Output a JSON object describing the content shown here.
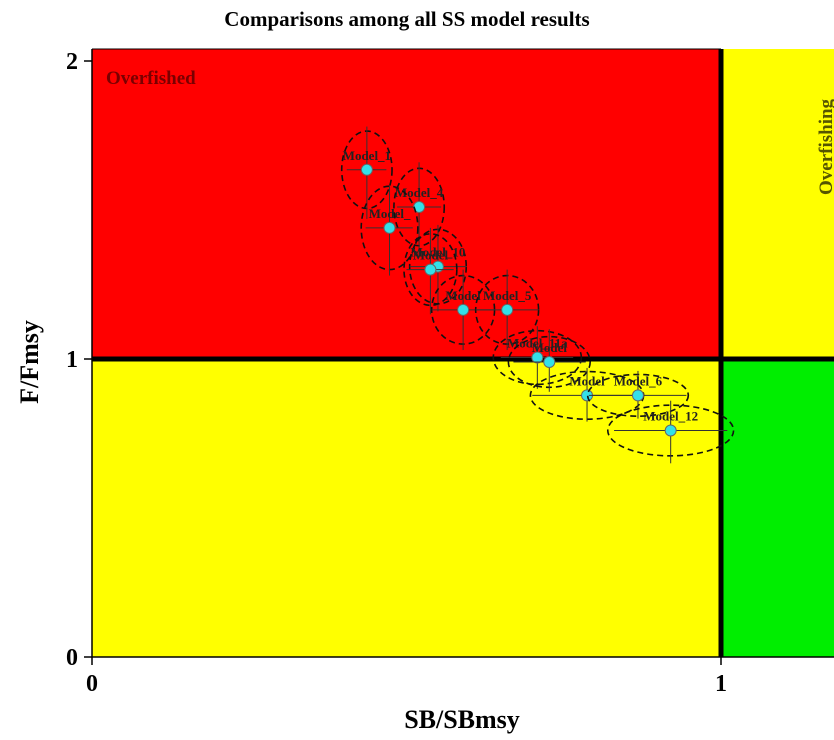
{
  "chart_data": {
    "type": "scatter",
    "title": "Comparisons among all SS model results",
    "xlabel": "SB/SBmsy",
    "ylabel": "F/Fmsy",
    "xlim": [
      0,
      1.18
    ],
    "ylim": [
      0,
      2.05
    ],
    "x_ticks": [
      "0",
      "1"
    ],
    "y_ticks": [
      "0",
      "1",
      "2"
    ],
    "reference_lines": {
      "x": 1,
      "y": 1
    },
    "quadrants": {
      "top_left": {
        "label": "Overfished",
        "color": "#ff0000"
      },
      "top_right": {
        "label": "Overfishing",
        "color": "#ffff00"
      },
      "bottom_left": {
        "label": "",
        "color": "#ffff00"
      },
      "bottom_right": {
        "label": "",
        "color": "#00ee00"
      }
    },
    "point_color": "#33e0e8",
    "points": [
      {
        "label": "Model_1",
        "x": 0.437,
        "y": 1.635,
        "x_lo": 0.405,
        "x_hi": 0.468,
        "y_lo": 1.47,
        "y_hi": 1.78,
        "rx": 0.04,
        "ry": 0.13
      },
      {
        "label": "Model_4",
        "x": 0.52,
        "y": 1.51,
        "x_lo": 0.485,
        "x_hi": 0.555,
        "y_lo": 1.34,
        "y_hi": 1.66,
        "rx": 0.04,
        "ry": 0.13
      },
      {
        "label": "Model_",
        "x": 0.473,
        "y": 1.44,
        "x_lo": 0.435,
        "x_hi": 0.51,
        "y_lo": 1.28,
        "y_hi": 1.58,
        "rx": 0.045,
        "ry": 0.14
      },
      {
        "label": "Model_10",
        "x": 0.55,
        "y": 1.31,
        "x_lo": 0.505,
        "x_hi": 0.595,
        "y_lo": 1.16,
        "y_hi": 1.45,
        "rx": 0.045,
        "ry": 0.125
      },
      {
        "label": "Model",
        "x": 0.538,
        "y": 1.3,
        "x_lo": 0.5,
        "x_hi": 0.575,
        "y_lo": 1.15,
        "y_hi": 1.44,
        "rx": 0.042,
        "ry": 0.12
      },
      {
        "label": "Model",
        "x": 0.59,
        "y": 1.165,
        "x_lo": 0.54,
        "x_hi": 0.64,
        "y_lo": 1.03,
        "y_hi": 1.3,
        "rx": 0.05,
        "ry": 0.115
      },
      {
        "label": "Model_5",
        "x": 0.66,
        "y": 1.165,
        "x_lo": 0.61,
        "x_hi": 0.71,
        "y_lo": 1.03,
        "y_hi": 1.3,
        "rx": 0.05,
        "ry": 0.115
      },
      {
        "label": "Model_11a",
        "x": 0.708,
        "y": 1.005,
        "x_lo": 0.65,
        "x_hi": 0.765,
        "y_lo": 0.9,
        "y_hi": 1.11,
        "rx": 0.07,
        "ry": 0.09
      },
      {
        "label": "Model",
        "x": 0.727,
        "y": 0.99,
        "x_lo": 0.67,
        "x_hi": 0.785,
        "y_lo": 0.89,
        "y_hi": 1.1,
        "rx": 0.065,
        "ry": 0.085
      },
      {
        "label": "Model",
        "x": 0.787,
        "y": 0.878,
        "x_lo": 0.7,
        "x_hi": 0.87,
        "y_lo": 0.79,
        "y_hi": 0.97,
        "rx": 0.09,
        "ry": 0.08
      },
      {
        "label": "Model_6",
        "x": 0.868,
        "y": 0.878,
        "x_lo": 0.79,
        "x_hi": 0.945,
        "y_lo": 0.8,
        "y_hi": 0.96,
        "rx": 0.08,
        "ry": 0.07
      },
      {
        "label": "Model_12",
        "x": 0.92,
        "y": 0.76,
        "x_lo": 0.83,
        "x_hi": 1.01,
        "y_lo": 0.65,
        "y_hi": 0.86,
        "rx": 0.1,
        "ry": 0.085
      }
    ]
  }
}
